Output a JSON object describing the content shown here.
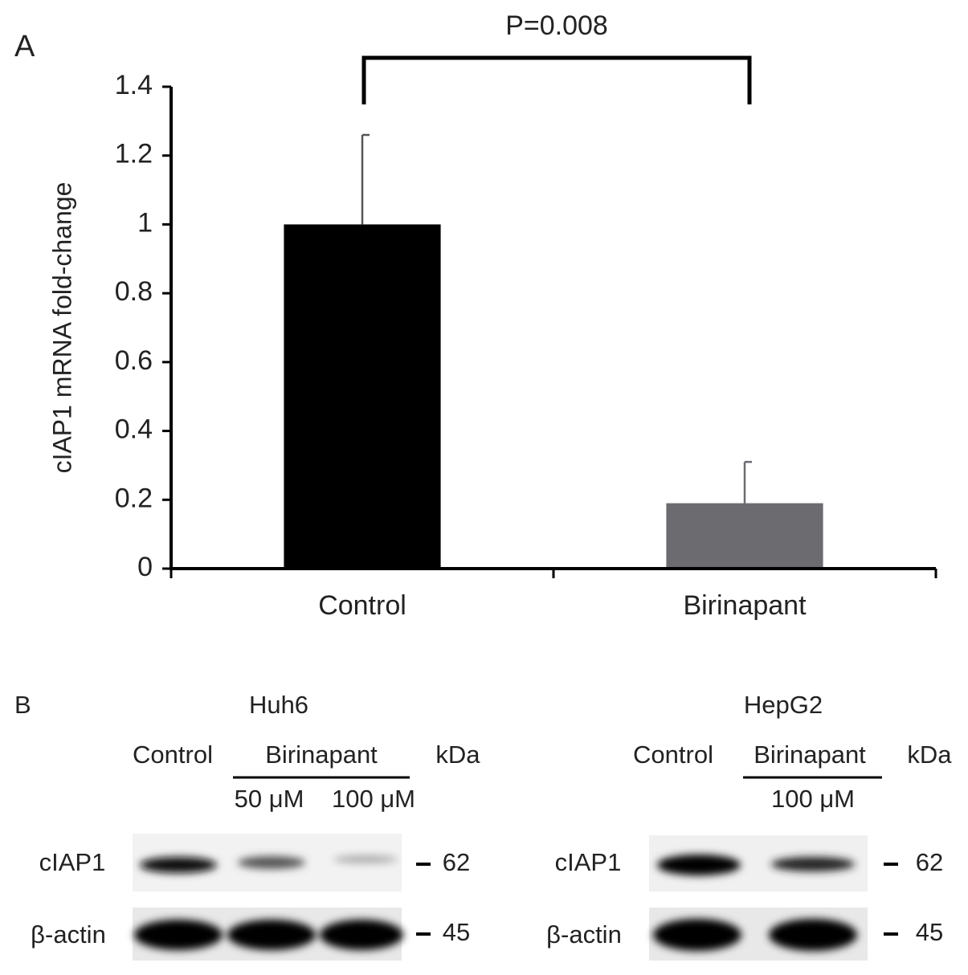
{
  "panel_a_label": "A",
  "chart_data": {
    "type": "bar",
    "annotation": "P=0.008",
    "ylabel": "cIAP1 mRNA fold-change",
    "categories": [
      "Control",
      "Birinapant"
    ],
    "values": [
      1,
      0.19
    ],
    "errors": [
      0.26,
      0.12
    ],
    "colors": [
      "#000000",
      "#6b6b70"
    ],
    "ylim": [
      0,
      1.4
    ],
    "yticks": [
      0,
      0.2,
      0.4,
      0.6,
      0.8,
      1,
      1.2,
      1.4
    ]
  },
  "panel_b": {
    "label": "B",
    "blots": [
      {
        "cell_line": "Huh6",
        "control": "Control",
        "treatment": "Birinapant",
        "doses": [
          "50 μM",
          "100 μM"
        ],
        "unit": "kDa",
        "rows": [
          {
            "protein": "cIAP1",
            "kda": 62
          },
          {
            "protein": "β-actin",
            "kda": 45
          }
        ]
      },
      {
        "cell_line": "HepG2",
        "control": "Control",
        "treatment": "Birinapant",
        "doses": [
          "100 μM"
        ],
        "unit": "kDa",
        "rows": [
          {
            "protein": "cIAP1",
            "kda": 62
          },
          {
            "protein": "β-actin",
            "kda": 45
          }
        ]
      }
    ]
  }
}
